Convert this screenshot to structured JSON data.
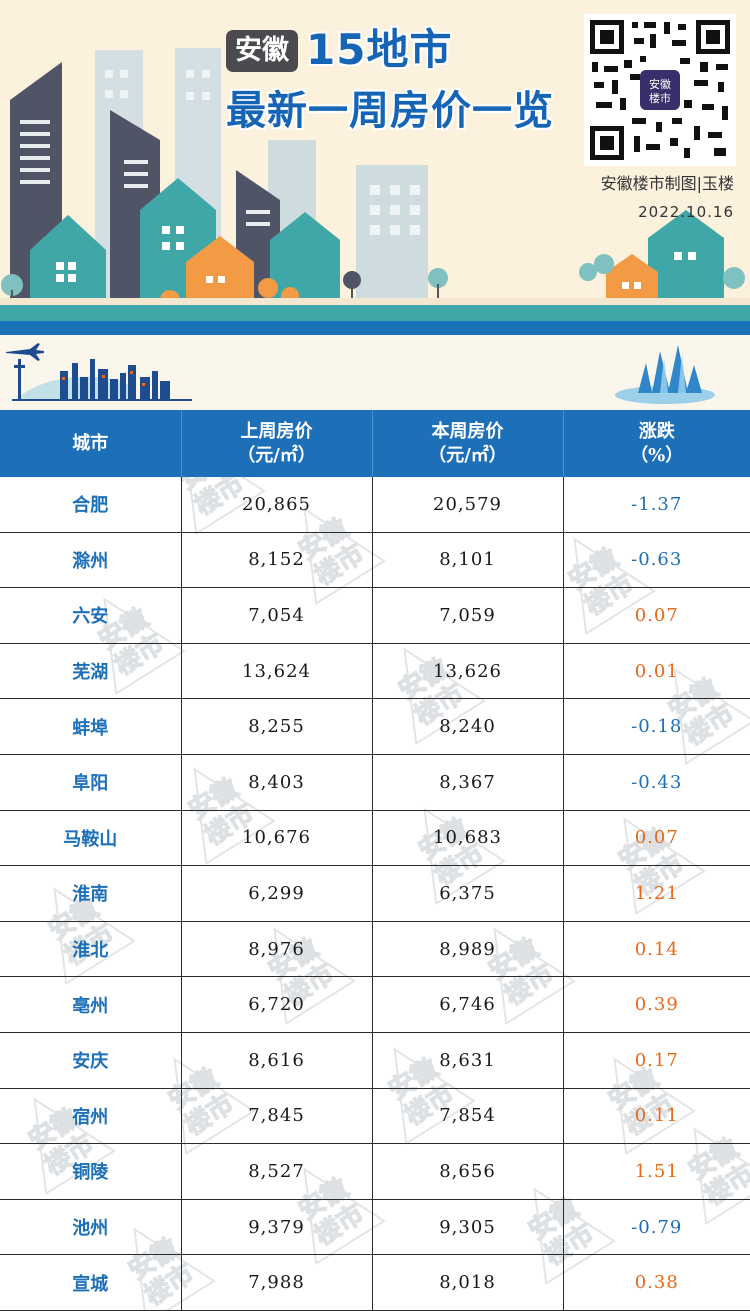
{
  "header": {
    "badge": "安徽",
    "title_line1": "15地市",
    "title_line2": "最新一周房价一览",
    "credit": "安徽楼市制图|玉楼",
    "date": "2022.10.16",
    "qr_center_text": "安徽楼市"
  },
  "colors": {
    "header_blue": "#1d6fb8",
    "title_blue": "#1665b5",
    "rise_orange": "#e56a1a",
    "fall_blue": "#1d6fb8",
    "road_teal": "#3fa7a7"
  },
  "table": {
    "columns": [
      {
        "line1": "城市",
        "line2": ""
      },
      {
        "line1": "上周房价",
        "line2": "（元/㎡）"
      },
      {
        "line1": "本周房价",
        "line2": "（元/㎡）"
      },
      {
        "line1": "涨跌",
        "line2": "（%）"
      }
    ],
    "rows": [
      {
        "city": "合肥",
        "last_week": "20,865",
        "this_week": "20,579",
        "change": "-1.37"
      },
      {
        "city": "滁州",
        "last_week": "8,152",
        "this_week": "8,101",
        "change": "-0.63"
      },
      {
        "city": "六安",
        "last_week": "7,054",
        "this_week": "7,059",
        "change": "0.07"
      },
      {
        "city": "芜湖",
        "last_week": "13,624",
        "this_week": "13,626",
        "change": "0.01"
      },
      {
        "city": "蚌埠",
        "last_week": "8,255",
        "this_week": "8,240",
        "change": "-0.18"
      },
      {
        "city": "阜阳",
        "last_week": "8,403",
        "this_week": "8,367",
        "change": "-0.43"
      },
      {
        "city": "马鞍山",
        "last_week": "10,676",
        "this_week": "10,683",
        "change": "0.07"
      },
      {
        "city": "淮南",
        "last_week": "6,299",
        "this_week": "6,375",
        "change": "1.21"
      },
      {
        "city": "淮北",
        "last_week": "8,976",
        "this_week": "8,989",
        "change": "0.14"
      },
      {
        "city": "亳州",
        "last_week": "6,720",
        "this_week": "6,746",
        "change": "0.39"
      },
      {
        "city": "安庆",
        "last_week": "8,616",
        "this_week": "8,631",
        "change": "0.17"
      },
      {
        "city": "宿州",
        "last_week": "7,845",
        "this_week": "7,854",
        "change": "0.11"
      },
      {
        "city": "铜陵",
        "last_week": "8,527",
        "this_week": "8,656",
        "change": "1.51"
      },
      {
        "city": "池州",
        "last_week": "9,379",
        "this_week": "9,305",
        "change": "-0.79"
      },
      {
        "city": "宣城",
        "last_week": "7,988",
        "this_week": "8,018",
        "change": "0.38"
      }
    ]
  },
  "watermark_text": [
    "安徽",
    "楼市"
  ]
}
